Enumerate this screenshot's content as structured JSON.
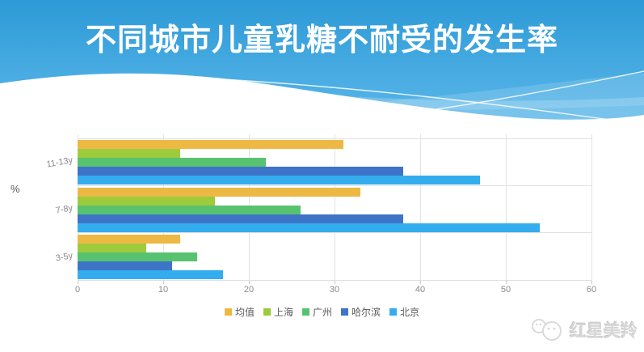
{
  "slide": {
    "title": "不同城市儿童乳糖不耐受的发生率",
    "watermark_brand": "红星美羚"
  },
  "chart_data": {
    "type": "bar",
    "orientation": "horizontal",
    "title": "不同城市儿童乳糖不耐受的发生率",
    "xlabel": "",
    "ylabel": "%",
    "category_order": "top-to-bottom",
    "categories": [
      "11-13y",
      "7-8y",
      "3-5y"
    ],
    "xlim": [
      0,
      60
    ],
    "xticks": [
      0,
      10,
      20,
      30,
      40,
      50,
      60
    ],
    "grid": true,
    "legend_position": "bottom",
    "series": [
      {
        "name": "均值",
        "color": "#EDB944",
        "values": [
          31,
          33,
          12
        ]
      },
      {
        "name": "上海",
        "color": "#9DCB3B",
        "values": [
          12,
          16,
          8
        ]
      },
      {
        "name": "广州",
        "color": "#57C370",
        "values": [
          22,
          26,
          14
        ]
      },
      {
        "name": "哈尔滨",
        "color": "#3E74C8",
        "values": [
          38,
          38,
          11
        ]
      },
      {
        "name": "北京",
        "color": "#33ADEE",
        "values": [
          47,
          54,
          17
        ]
      }
    ]
  }
}
